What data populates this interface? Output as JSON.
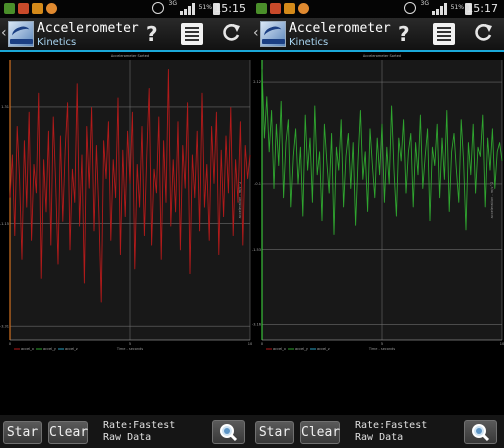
{
  "status_bar": {
    "left": {
      "time": "15:15",
      "network": "3G",
      "battery_pct": "51%"
    },
    "right": {
      "time": "15:17",
      "network": "3G",
      "battery_pct": "51%"
    }
  },
  "app": {
    "title": "Accelerometer",
    "subtitle": "Kinetics",
    "logo_text": "Kinetics"
  },
  "toolbar": {
    "help_label": "?",
    "start_label": "Star",
    "clear_label": "Clear",
    "rate_label": "Rate:Fastest",
    "data_label": "Raw Data"
  },
  "colors": {
    "accent": "#1aa7d8",
    "x_series": "#b21a1a",
    "y_series": "#2fa52f",
    "z_series": "#2a9fbf"
  },
  "icons": {
    "help": "question-icon",
    "list": "list-icon",
    "refresh": "refresh-icon",
    "zoom": "zoom-icon"
  },
  "chart_data": [
    {
      "type": "line",
      "title": "Accelerometer Sorted",
      "xlabel": "Time - seconds",
      "ylabel": "acceleration - m/s^2",
      "xlim": [
        0,
        10
      ],
      "ylim": [
        -3.6,
        2.3
      ],
      "x_ticks": [
        "0",
        "5",
        "10"
      ],
      "y_ticks": [
        "1.31",
        "-1.15",
        "-3.31"
      ],
      "legend": [
        "accel_x",
        "accel_y",
        "accel_z"
      ],
      "series": [
        {
          "name": "accel_x",
          "color": "#b21a1a",
          "x": [
            0,
            0.1,
            0.2,
            0.3,
            0.4,
            0.5,
            0.6,
            0.7,
            0.8,
            0.9,
            1.0,
            1.1,
            1.2,
            1.3,
            1.4,
            1.5,
            1.6,
            1.7,
            1.8,
            1.9,
            2.0,
            2.1,
            2.2,
            2.3,
            2.4,
            2.5,
            2.6,
            2.7,
            2.8,
            2.9,
            3.0,
            3.1,
            3.2,
            3.3,
            3.4,
            3.5,
            3.6,
            3.7,
            3.8,
            3.9,
            4.0,
            4.1,
            4.2,
            4.3,
            4.4,
            4.5,
            4.6,
            4.7,
            4.8,
            4.9,
            5.0,
            5.1,
            5.2,
            5.3,
            5.4,
            5.5,
            5.6,
            5.7,
            5.8,
            5.9,
            6.0,
            6.1,
            6.2,
            6.3,
            6.4,
            6.5,
            6.6,
            6.7,
            6.8,
            6.9,
            7.0,
            7.1,
            7.2,
            7.3,
            7.4,
            7.5,
            7.6,
            7.7,
            7.8,
            7.9,
            8.0,
            8.1,
            8.2,
            8.3,
            8.4,
            8.5,
            8.6,
            8.7,
            8.8,
            8.9,
            9.0,
            9.1,
            9.2,
            9.3,
            9.4,
            9.5,
            9.6,
            9.7,
            9.8,
            9.9,
            10.0
          ],
          "y": [
            -0.6,
            0.3,
            -1.4,
            0.9,
            -0.2,
            -1.9,
            0.6,
            -0.8,
            1.2,
            -1.5,
            0.1,
            -0.5,
            1.6,
            -2.3,
            0.2,
            -0.9,
            0.8,
            -1.6,
            1.1,
            -0.3,
            -2.0,
            0.7,
            -1.1,
            0.4,
            1.4,
            -1.7,
            0.0,
            -0.7,
            1.8,
            -1.2,
            0.3,
            -2.4,
            0.9,
            -0.4,
            1.3,
            -1.3,
            0.5,
            -0.9,
            -2.8,
            0.6,
            -0.2,
            1.0,
            -1.5,
            0.2,
            -0.6,
            1.5,
            -1.8,
            0.4,
            -1.0,
            0.8,
            -0.3,
            1.2,
            -2.1,
            0.1,
            -0.8,
            0.9,
            -1.4,
            0.3,
            1.7,
            -1.6,
            0.0,
            -0.5,
            1.1,
            -1.9,
            0.6,
            -0.7,
            2.1,
            -1.2,
            0.2,
            -0.9,
            1.0,
            -1.7,
            0.5,
            -0.4,
            1.4,
            -2.2,
            0.3,
            -0.6,
            0.8,
            -1.3,
            1.6,
            -0.8,
            0.1,
            -1.5,
            0.9,
            -0.3,
            1.2,
            -1.8,
            0.4,
            -1.0,
            0.7,
            -0.5,
            1.3,
            -1.4,
            0.2,
            -0.7,
            1.0,
            -1.6,
            0.5,
            -0.2,
            0.3
          ]
        },
        {
          "name": "accel_y",
          "color": "#2fa52f",
          "x": [],
          "y": []
        },
        {
          "name": "accel_z",
          "color": "#2a9fbf",
          "x": [],
          "y": []
        }
      ]
    },
    {
      "type": "line",
      "title": "Accelerometer Sorted",
      "xlabel": "Time - seconds",
      "ylabel": "acceleration - m/s^2",
      "xlim": [
        0,
        10
      ],
      "ylim": [
        -3.5,
        2.6
      ],
      "x_ticks": [
        "0",
        "5",
        "10"
      ],
      "y_ticks": [
        "2.12",
        "-0.1",
        "-1.53",
        "-3.16"
      ],
      "legend": [
        "accel_x",
        "accel_y",
        "accel_z"
      ],
      "series": [
        {
          "name": "accel_x",
          "color": "#b21a1a",
          "x": [],
          "y": []
        },
        {
          "name": "accel_y",
          "color": "#2fa52f",
          "x": [
            0,
            0.1,
            0.2,
            0.3,
            0.4,
            0.5,
            0.6,
            0.7,
            0.8,
            0.9,
            1.0,
            1.1,
            1.2,
            1.3,
            1.4,
            1.5,
            1.6,
            1.7,
            1.8,
            1.9,
            2.0,
            2.1,
            2.2,
            2.3,
            2.4,
            2.5,
            2.6,
            2.7,
            2.8,
            2.9,
            3.0,
            3.1,
            3.2,
            3.3,
            3.4,
            3.5,
            3.6,
            3.7,
            3.8,
            3.9,
            4.0,
            4.1,
            4.2,
            4.3,
            4.4,
            4.5,
            4.6,
            4.7,
            4.8,
            4.9,
            5.0,
            5.1,
            5.2,
            5.3,
            5.4,
            5.5,
            5.6,
            5.7,
            5.8,
            5.9,
            6.0,
            6.1,
            6.2,
            6.3,
            6.4,
            6.5,
            6.6,
            6.7,
            6.8,
            6.9,
            7.0,
            7.1,
            7.2,
            7.3,
            7.4,
            7.5,
            7.6,
            7.7,
            7.8,
            7.9,
            8.0,
            8.1,
            8.2,
            8.3,
            8.4,
            8.5,
            8.6,
            8.7,
            8.8,
            8.9,
            9.0,
            9.1,
            9.2,
            9.3,
            9.4,
            9.5,
            9.6,
            9.7,
            9.8,
            9.9,
            10.0
          ],
          "y": [
            2.4,
            0.9,
            1.8,
            0.6,
            1.5,
            -0.2,
            1.2,
            0.3,
            1.7,
            -0.4,
            0.8,
            1.3,
            -0.6,
            0.5,
            1.1,
            -0.1,
            0.7,
            -0.8,
            1.4,
            0.2,
            0.9,
            -0.5,
            1.6,
            0.1,
            0.6,
            -0.9,
            1.2,
            0.4,
            -0.3,
            1.0,
            -1.2,
            0.7,
            0.2,
            1.3,
            -0.6,
            0.5,
            1.0,
            -0.2,
            0.8,
            -1.0,
            0.4,
            1.5,
            0.0,
            0.6,
            -0.7,
            1.1,
            0.3,
            -0.4,
            0.9,
            0.1,
            1.2,
            -0.5,
            0.7,
            -0.1,
            1.6,
            0.2,
            -0.8,
            0.9,
            0.4,
            1.3,
            -0.3,
            0.6,
            1.0,
            -0.6,
            0.8,
            0.1,
            1.4,
            -0.2,
            0.5,
            1.1,
            -0.9,
            0.7,
            0.3,
            1.2,
            -0.4,
            0.9,
            0.0,
            1.5,
            -0.7,
            0.6,
            1.0,
            0.2,
            -0.5,
            1.3,
            0.4,
            -1.1,
            0.8,
            0.1,
            1.2,
            -0.3,
            0.7,
            0.5,
            1.4,
            -0.6,
            0.9,
            0.2,
            1.1,
            -0.2,
            0.6,
            0.8,
            0.4
          ]
        },
        {
          "name": "accel_z",
          "color": "#2a9fbf",
          "x": [],
          "y": []
        }
      ]
    }
  ]
}
